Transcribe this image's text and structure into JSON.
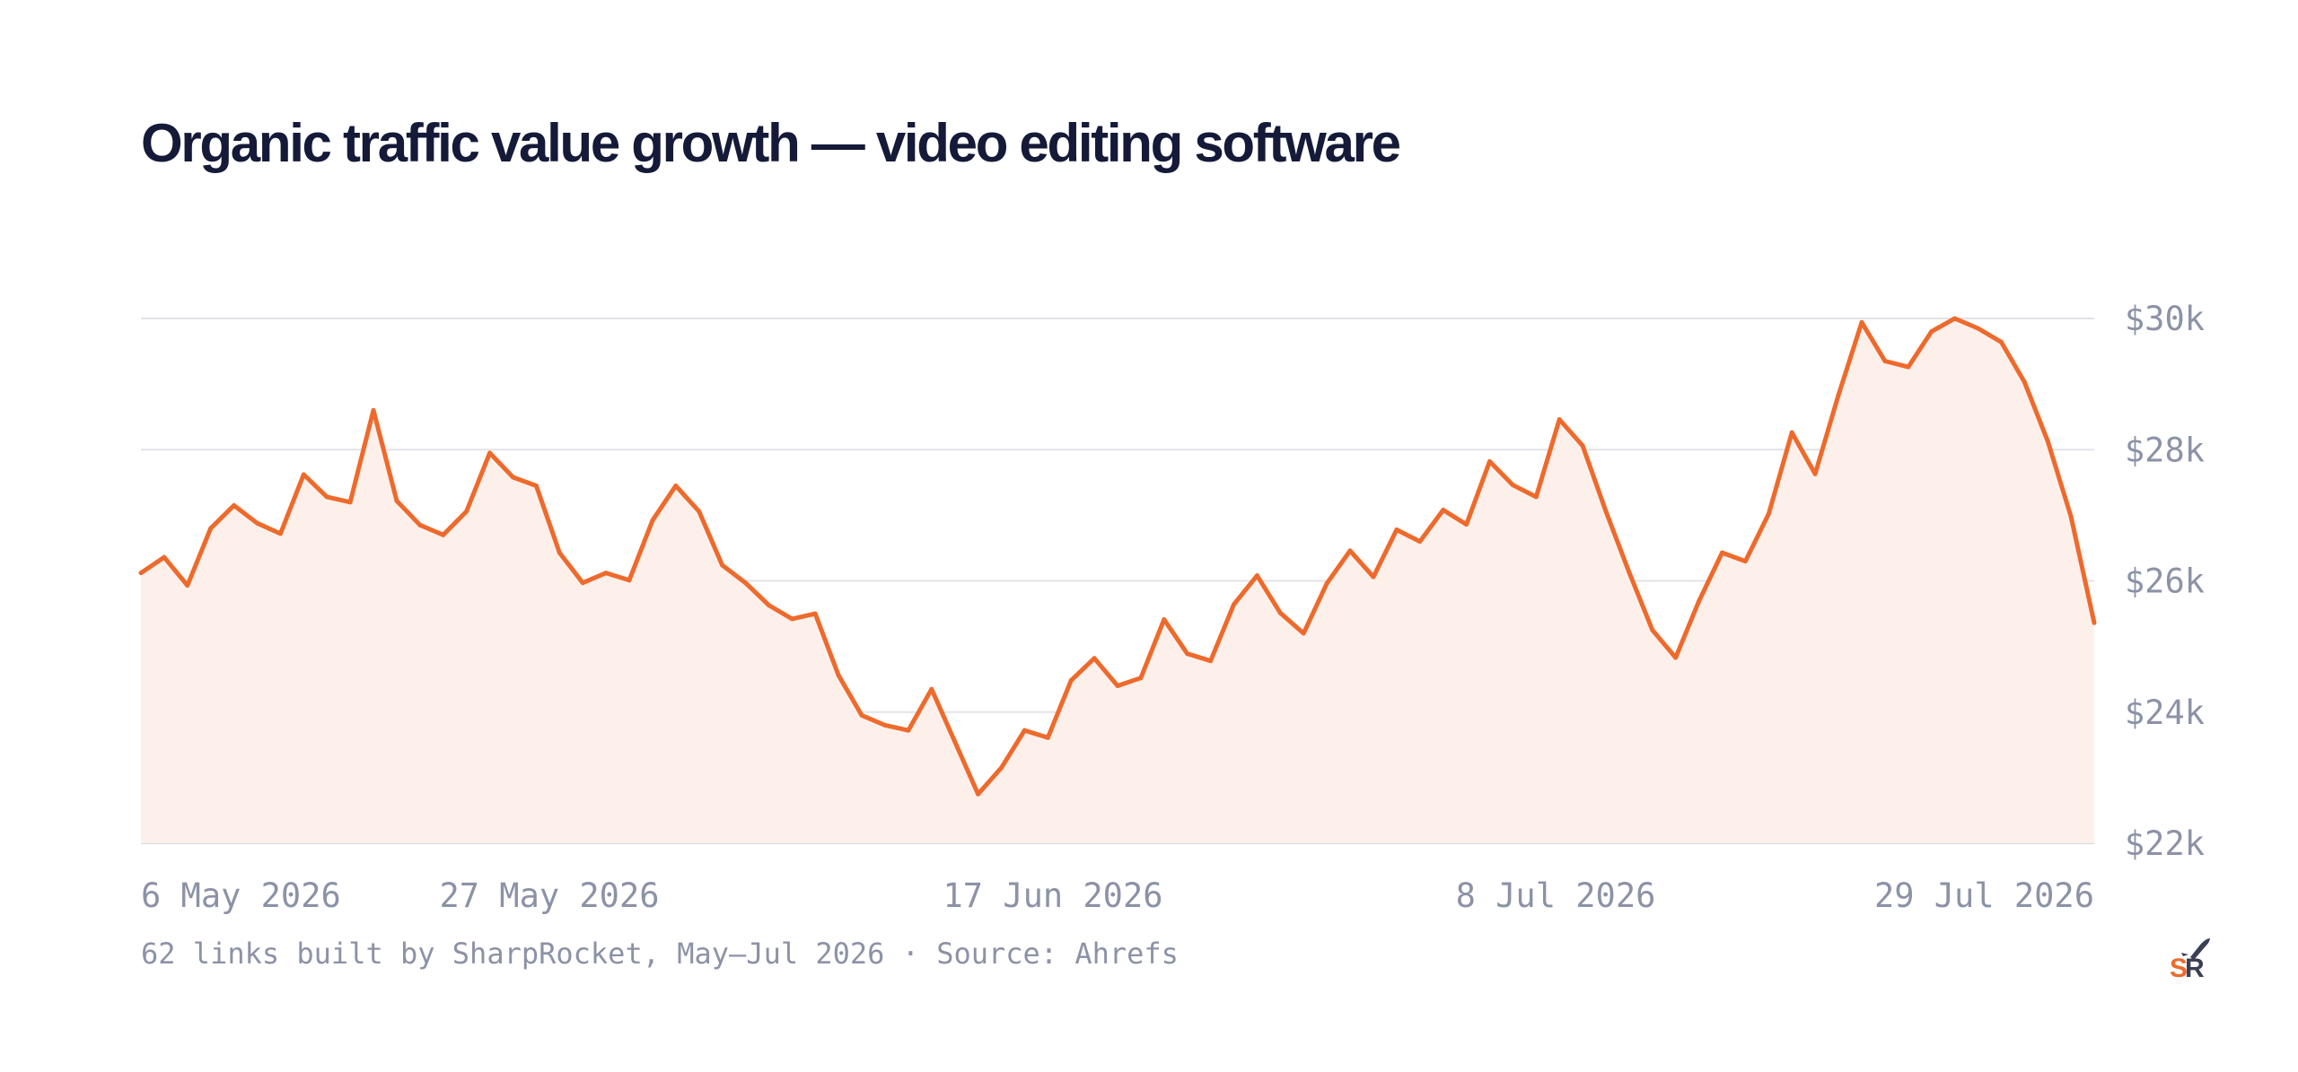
{
  "chart_data": {
    "type": "area",
    "title": "Organic traffic value growth — video editing software",
    "caption": "62 links built by SharpRocket, May–Jul 2026 · Source: Ahrefs",
    "x_start": "6 May 2026",
    "x_end": "31 Jul 2026",
    "x_ticks": [
      "6 May 2026",
      "27 May 2026",
      "17 Jun 2026",
      "8 Jul 2026",
      "29 Jul 2026"
    ],
    "y_ticks": [
      "$30k",
      "$28k",
      "$26k",
      "$24k",
      "$22k"
    ],
    "ylim": [
      22000,
      30000
    ],
    "y_tick_values": [
      30000,
      28000,
      26000,
      24000,
      22000
    ],
    "grid": true,
    "legend": "none",
    "colors": {
      "line": "#ee6a2c",
      "fill": "#fdf0eb",
      "title": "#141a38",
      "tick": "#8c92a6"
    },
    "series": [
      {
        "values": [
          26120,
          26360,
          25930,
          26800,
          27150,
          26880,
          26720,
          27620,
          27280,
          27200,
          28600,
          27220,
          26850,
          26700,
          27060,
          27950,
          27580,
          27450,
          26430,
          25970,
          26120,
          26010,
          26920,
          27450,
          27060,
          26240,
          25970,
          25630,
          25420,
          25500,
          24560,
          23950,
          23800,
          23720,
          24350,
          23550,
          22750,
          23150,
          23720,
          23610,
          24480,
          24820,
          24400,
          24520,
          25410,
          24890,
          24780,
          25640,
          26080,
          25510,
          25200,
          25960,
          26460,
          26060,
          26780,
          26600,
          27080,
          26860,
          27820,
          27460,
          27280,
          28460,
          28060,
          27060,
          26130,
          25250,
          24830,
          25690,
          26430,
          26300,
          27020,
          28260,
          27630,
          28830,
          29940,
          29350,
          29260,
          29800,
          30000,
          29850,
          29640,
          29030,
          28130,
          26980,
          25360
        ]
      }
    ]
  },
  "logo": {
    "text": "SR",
    "letter_s": "S",
    "letter_r": "R",
    "color_s": "#ee6a2c",
    "color_r": "#3a3f55"
  }
}
